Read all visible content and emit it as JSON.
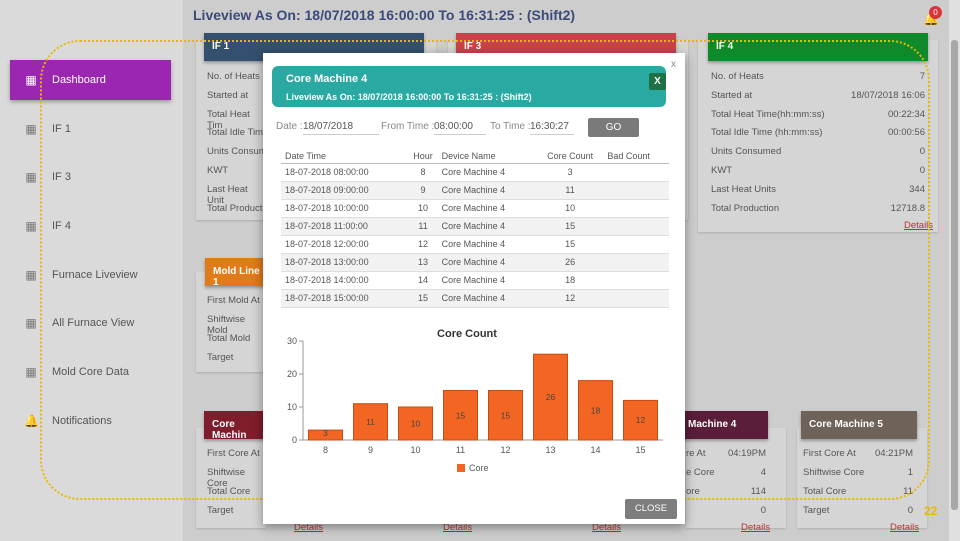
{
  "page": {
    "title": "Liveview As On: 18/07/2018 16:00:00 To 16:31:25   : (Shift2)",
    "notification_count": "0",
    "page_number": "22"
  },
  "sidebar": {
    "items": [
      {
        "label": "Dashboard",
        "icon": "dashboard-icon",
        "active": true
      },
      {
        "label": "IF 1",
        "icon": "grid-icon"
      },
      {
        "label": "IF 3",
        "icon": "grid-icon"
      },
      {
        "label": "IF 4",
        "icon": "grid-icon"
      },
      {
        "label": "Furnace Liveview",
        "icon": "grid-icon"
      },
      {
        "label": "All Furnace View",
        "icon": "grid-icon"
      },
      {
        "label": "Mold Core Data",
        "icon": "grid-icon"
      },
      {
        "label": "Notifications",
        "icon": "bell-icon"
      }
    ]
  },
  "cards": {
    "if1": {
      "title": "IF 1",
      "rows": [
        "No. of Heats",
        "Started at",
        "Total Heat Tim",
        "Total Idle Tim",
        "Units Consum",
        "KWT",
        "Last Heat Unit",
        "Total Product"
      ]
    },
    "if3": {
      "title": "IF 3"
    },
    "if4": {
      "title": "IF 4",
      "rows": [
        [
          "No. of Heats",
          "7"
        ],
        [
          "Started at",
          "18/07/2018 16:06"
        ],
        [
          "Total Heat Time(hh:mm:ss)",
          "00:22:34"
        ],
        [
          "Total Idle Time (hh:mm:ss)",
          "00:00:56"
        ],
        [
          "Units Consumed",
          "0"
        ],
        [
          "KWT",
          "0"
        ],
        [
          "Last Heat Units",
          "344"
        ],
        [
          "Total Production",
          "12718.8"
        ]
      ],
      "details": "Details"
    },
    "mold": {
      "title": "Mold Line 1",
      "rows": [
        "First Mold At",
        "Shiftwise Mold",
        "Total Mold",
        "Target"
      ]
    },
    "cm3": {
      "title": "Core Machin",
      "rows": [
        "First Core At",
        "Shiftwise Core",
        "Total Core",
        "Target"
      ],
      "details": "Details"
    },
    "cm4": {
      "title": "Machine 4",
      "rows": [
        [
          "re At",
          "04:19PM"
        ],
        [
          "e Core",
          "4"
        ],
        [
          "ore",
          "114"
        ],
        [
          "",
          "0"
        ]
      ],
      "details": "Details"
    },
    "cm5": {
      "title": "Core Machine 5",
      "rows": [
        [
          "First Core At",
          "04:21PM"
        ],
        [
          "Shiftwise Core",
          "1"
        ],
        [
          "Total Core",
          "11"
        ],
        [
          "Target",
          "0"
        ]
      ],
      "details": "Details"
    },
    "mid_details": [
      "Details",
      "Details"
    ]
  },
  "modal": {
    "title": "Core Machine 4",
    "subtitle": "Liveview As On: 18/07/2018 16:00:00 To  16:31:25 : (Shift2)",
    "excel_icon": "excel-icon",
    "close_x": "x",
    "date_label": "Date :",
    "date_value": "18/07/2018",
    "from_label": "From Time :",
    "from_value": "08:00:00",
    "to_label": "To Time :",
    "to_value": "16:30:27",
    "go_label": "GO",
    "close_label": "CLOSE",
    "table": {
      "headers": [
        "Date Time",
        "Hour",
        "Device Name",
        "Core Count",
        "Bad Count"
      ],
      "rows": [
        [
          "18-07-2018 08:00:00",
          "8",
          "Core Machine 4",
          "3",
          ""
        ],
        [
          "18-07-2018 09:00:00",
          "9",
          "Core Machine 4",
          "11",
          ""
        ],
        [
          "18-07-2018 10:00:00",
          "10",
          "Core Machine 4",
          "10",
          ""
        ],
        [
          "18-07-2018 11:00:00",
          "11",
          "Core Machine 4",
          "15",
          ""
        ],
        [
          "18-07-2018 12:00:00",
          "12",
          "Core Machine 4",
          "15",
          ""
        ],
        [
          "18-07-2018 13:00:00",
          "13",
          "Core Machine 4",
          "26",
          ""
        ],
        [
          "18-07-2018 14:00:00",
          "14",
          "Core Machine 4",
          "18",
          ""
        ],
        [
          "18-07-2018 15:00:00",
          "15",
          "Core Machine 4",
          "12",
          ""
        ]
      ]
    }
  },
  "chart_data": {
    "type": "bar",
    "title": "Core Count",
    "categories": [
      "8",
      "9",
      "10",
      "11",
      "12",
      "13",
      "14",
      "15"
    ],
    "series": [
      {
        "name": "Core",
        "values": [
          3,
          11,
          10,
          15,
          15,
          26,
          18,
          12
        ]
      }
    ],
    "ylim": [
      0,
      30
    ],
    "yticks": [
      0,
      10,
      20,
      30
    ],
    "color": "#f26522",
    "legend": "bottom",
    "grid": false
  }
}
